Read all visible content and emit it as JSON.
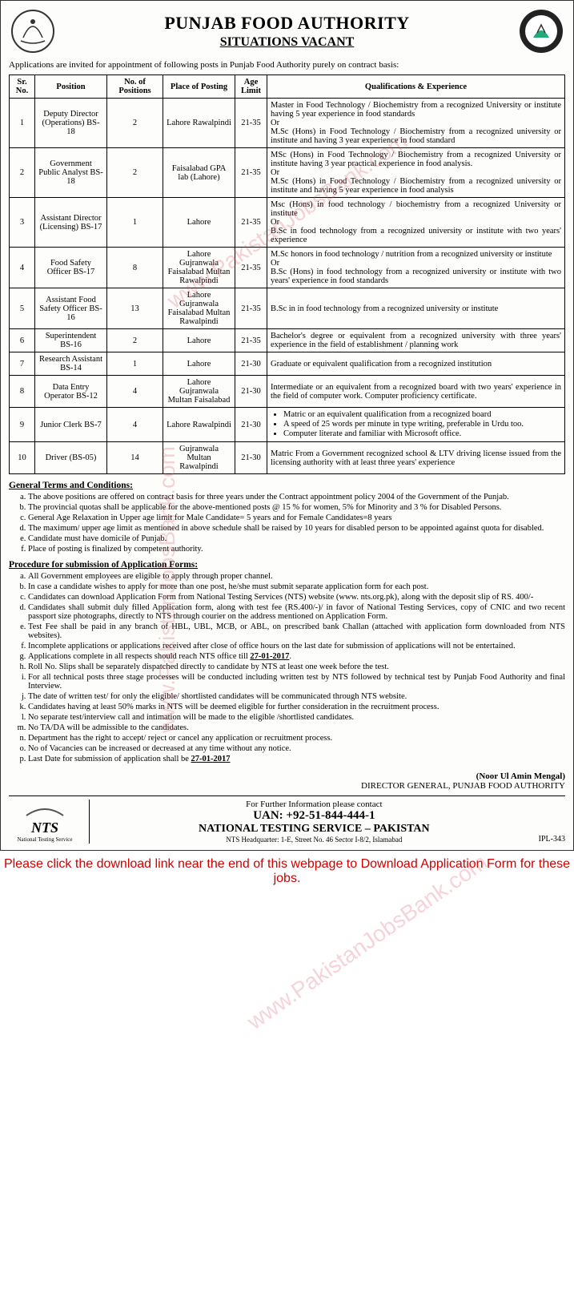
{
  "header": {
    "title": "PUNJAB FOOD AUTHORITY",
    "subtitle": "SITUATIONS VACANT"
  },
  "intro": "Applications are invited for appointment of following posts in Punjab Food Authority purely on contract basis:",
  "table": {
    "columns": [
      "Sr. No.",
      "Position",
      "No. of Positions",
      "Place of Posting",
      "Age Limit",
      "Qualifications & Experience"
    ],
    "rows": [
      {
        "sr": "1",
        "position": "Deputy Director (Operations) BS-18",
        "num": "2",
        "place": "Lahore Rawalpindi",
        "age": "21-35",
        "qual": "Master in Food Technology / Biochemistry from a recognized University or institute having 5 year experience in food standards\nOr\nM.Sc (Hons) in Food Technology / Biochemistry from a recognized university or institute and having 3 year experience in food standard"
      },
      {
        "sr": "2",
        "position": "Government Public Analyst BS-18",
        "num": "2",
        "place": "Faisalabad GPA lab (Lahore)",
        "age": "21-35",
        "qual": "MSc (Hons) in Food Technology / Biochemistry from a recognized University or institute having 3 year practical experience in food analysis.\nOr\nM.Sc (Hons) in Food Technology / Biochemistry from a recognized university or institute and having 5 year experience in food analysis"
      },
      {
        "sr": "3",
        "position": "Assistant Director (Licensing) BS-17",
        "num": "1",
        "place": "Lahore",
        "age": "21-35",
        "qual": "Msc (Hons) in food technology / biochemistry from a recognized University or institute\nOr\nB.Sc in food technology from a recognized university or institute with two years' experience"
      },
      {
        "sr": "4",
        "position": "Food Safety Officer BS-17",
        "num": "8",
        "place": "Lahore Gujranwala Faisalabad Multan Rawalpindi",
        "age": "21-35",
        "qual": "M.Sc honors in food technology / nutrition from a recognized university or institute\nOr\nB.Sc (Hons) in food technology from a recognized university or institute with two years' experience in food standards"
      },
      {
        "sr": "5",
        "position": "Assistant Food Safety Officer BS-16",
        "num": "13",
        "place": "Lahore Gujranwala Faisalabad Multan Rawalpindi",
        "age": "21-35",
        "qual": "B.Sc in in food technology from a recognized university or institute"
      },
      {
        "sr": "6",
        "position": "Superintendent BS-16",
        "num": "2",
        "place": "Lahore",
        "age": "21-35",
        "qual": "Bachelor's degree or equivalent from a recognized university with three years' experience in the field of establishment / planning work"
      },
      {
        "sr": "7",
        "position": "Research Assistant BS-14",
        "num": "1",
        "place": "Lahore",
        "age": "21-30",
        "qual": "Graduate or equivalent qualification from a recognized institution"
      },
      {
        "sr": "8",
        "position": "Data Entry Operator BS-12",
        "num": "4",
        "place": "Lahore Gujranwala Multan Faisalabad",
        "age": "21-30",
        "qual": "Intermediate or an equivalent from a recognized board with two years' experience in the field of computer work. Computer proficiency certificate."
      },
      {
        "sr": "9",
        "position": "Junior Clerk BS-7",
        "num": "4",
        "place": "Lahore Rawalpindi",
        "age": "21-30",
        "qual_bullets": [
          "Matric or an equivalent qualification from a recognized board",
          "A speed of 25 words per minute in type writing, preferable in Urdu too.",
          "Computer literate and familiar with Microsoft office."
        ]
      },
      {
        "sr": "10",
        "position": "Driver (BS-05)",
        "num": "14",
        "place": "Gujranwala Multan Rawalpindi",
        "age": "21-30",
        "qual": "Matric From a Government recognized school & LTV driving license issued from the licensing authority with at least three years' experience"
      }
    ]
  },
  "terms_title": "General Terms and Conditions:",
  "terms": [
    "The above positions are offered on contract basis for three years under the Contract appointment policy 2004 of the Government of the Punjab.",
    "The provincial quotas shall be applicable for the above-mentioned posts @ 15 % for women, 5% for Minority and 3 % for Disabled Persons.",
    "General Age Relaxation in Upper age limit for Male Candidate= 5 years and for Female Candidates=8 years",
    "The maximum/ upper age limit as mentioned in above schedule shall be raised by 10 years for disabled person to be appointed against quota for disabled.",
    "Candidate must have domicile of Punjab.",
    "Place of posting is finalized by competent authority."
  ],
  "procedure_title": "Procedure for submission of Application Forms:",
  "procedure": [
    "All Government employees are eligible to apply through proper channel.",
    "In case a candidate wishes to apply for more than one post, he/she must submit separate application form for each post.",
    "Candidates can download Application Form from National Testing Services (NTS) website (www. nts.org.pk), along with the deposit slip of RS. 400/-",
    "Candidates shall submit duly filled Application form, along with test fee (RS.400/-)/ in favor of National Testing Services, copy of CNIC and two recent passport size photographs, directly to NTS through courier on the address mentioned on Application Form.",
    "Test Fee shall be paid in any branch of HBL, UBL, MCB, or ABL, on prescribed bank Challan (attached with application form downloaded from NTS websites).",
    "Incomplete applications or applications received after close of office hours on the last date for submission of applications will not be entertained.",
    "Applications complete in all respects should reach NTS office till 27-01-2017.",
    "Roll No. Slips shall be separately dispatched directly to candidate by NTS at least one week before the test.",
    "For all technical posts three stage processes will be conducted including written test by NTS followed by technical test by Punjab Food Authority and final Interview.",
    "The date of written test/ for only the eligible/ shortlisted candidates will be communicated through NTS website.",
    "Candidates having at least 50% marks in NTS will be deemed eligible for further consideration in the recruitment process.",
    "No separate test/interview call and intimation will be made to the eligible /shortlisted candidates.",
    "No TA/DA will be admissible to the candidates.",
    "Department has the right to accept/ reject or cancel any application or recruitment process.",
    "No of Vacancies can be increased or decreased at any time without any notice.",
    "Last Date for submission of application shall be 27-01-2017"
  ],
  "signature": {
    "name": "(Noor Ul Amin Mengal)",
    "title": "DIRECTOR GENERAL, PUNJAB FOOD AUTHORITY"
  },
  "contact": {
    "line1": "For Further Information please contact",
    "uan": "UAN: +92-51-844-444-1",
    "org": "NATIONAL TESTING SERVICE – PAKISTAN",
    "addr": "NTS Headquarter: 1-E, Street No. 46 Sector I-8/2, Islamabad"
  },
  "nts": {
    "text": "NTS",
    "sub": "National Testing Service"
  },
  "ipl": "IPL-343",
  "bottom_note": "Please click the download link near the end of this webpage to Download Application Form for these jobs.",
  "watermark": "www.PakistanJobsBank.com",
  "colors": {
    "border": "#000000",
    "text": "#000000",
    "red_note": "#d00000",
    "watermark": "rgba(220,80,100,0.25)",
    "bg": "#fdfdfb"
  }
}
